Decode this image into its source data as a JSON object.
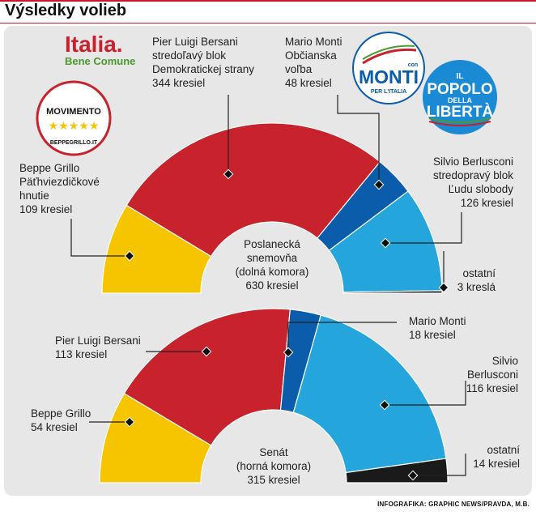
{
  "title": "Výsledky volieb",
  "credit": "INFOGRAFIKA: GRAPHIC NEWS/PRAVDA, M.B.",
  "logos": {
    "italia": {
      "line1": "Italia.",
      "line2": "Bene Comune"
    },
    "movimento": {
      "name": "MOVIMENTO",
      "stars": "★★★★★",
      "url": "BEPPEGRILLO.IT"
    },
    "monti": {
      "small": "con",
      "name": "MONTI",
      "sub": "PER L'ITALIA"
    },
    "pdl": {
      "line1": "IL",
      "line2": "POPOLO",
      "line3": "DELLA",
      "line4": "LIBERTÀ"
    }
  },
  "chart_data": [
    {
      "type": "semicircle",
      "center_label": [
        "Poslanecká",
        "snemovňa",
        "(dolná komora)",
        "630 kresiel"
      ],
      "segments": [
        {
          "key": "grillo",
          "label": [
            "Beppe Grillo",
            "Päťhviezdičkové",
            "hnutie",
            "109 kresiel"
          ],
          "value": 109,
          "color": "#f6c500"
        },
        {
          "key": "bersani",
          "label": [
            "Pier Luigi Bersani",
            "stredoľavý blok",
            "Demokratickej strany",
            "344 kresiel"
          ],
          "value": 344,
          "color": "#c8222c"
        },
        {
          "key": "monti",
          "label": [
            "Mario Monti",
            "Občianska",
            "voľba",
            "48 kresiel"
          ],
          "value": 48,
          "color": "#0b5cab"
        },
        {
          "key": "berlusconi",
          "label": [
            "Silvio Berlusconi",
            "stredopravý blok",
            "Ľudu slobody",
            "126 kresiel"
          ],
          "value": 126,
          "color": "#24a6dc"
        },
        {
          "key": "ostatni",
          "label": [
            "ostatní",
            "3 kreslá"
          ],
          "value": 3,
          "color": "#1a1a1a"
        }
      ]
    },
    {
      "type": "semicircle",
      "center_label": [
        "Senát",
        "(horná komora)",
        "315 kresiel"
      ],
      "segments": [
        {
          "key": "grillo",
          "label": [
            "Beppe Grillo",
            "54 kresiel"
          ],
          "value": 54,
          "color": "#f6c500"
        },
        {
          "key": "bersani",
          "label": [
            "Pier Luigi Bersani",
            "113 kresiel"
          ],
          "value": 113,
          "color": "#c8222c"
        },
        {
          "key": "monti",
          "label": [
            "Mario Monti",
            "18 kresiel"
          ],
          "value": 18,
          "color": "#0b5cab"
        },
        {
          "key": "berlusconi",
          "label": [
            "Silvio",
            "Berlusconi",
            "116 kresiel"
          ],
          "value": 116,
          "color": "#24a6dc"
        },
        {
          "key": "ostatni",
          "label": [
            "ostatní",
            "14 kresiel"
          ],
          "value": 14,
          "color": "#1a1a1a"
        }
      ]
    }
  ]
}
